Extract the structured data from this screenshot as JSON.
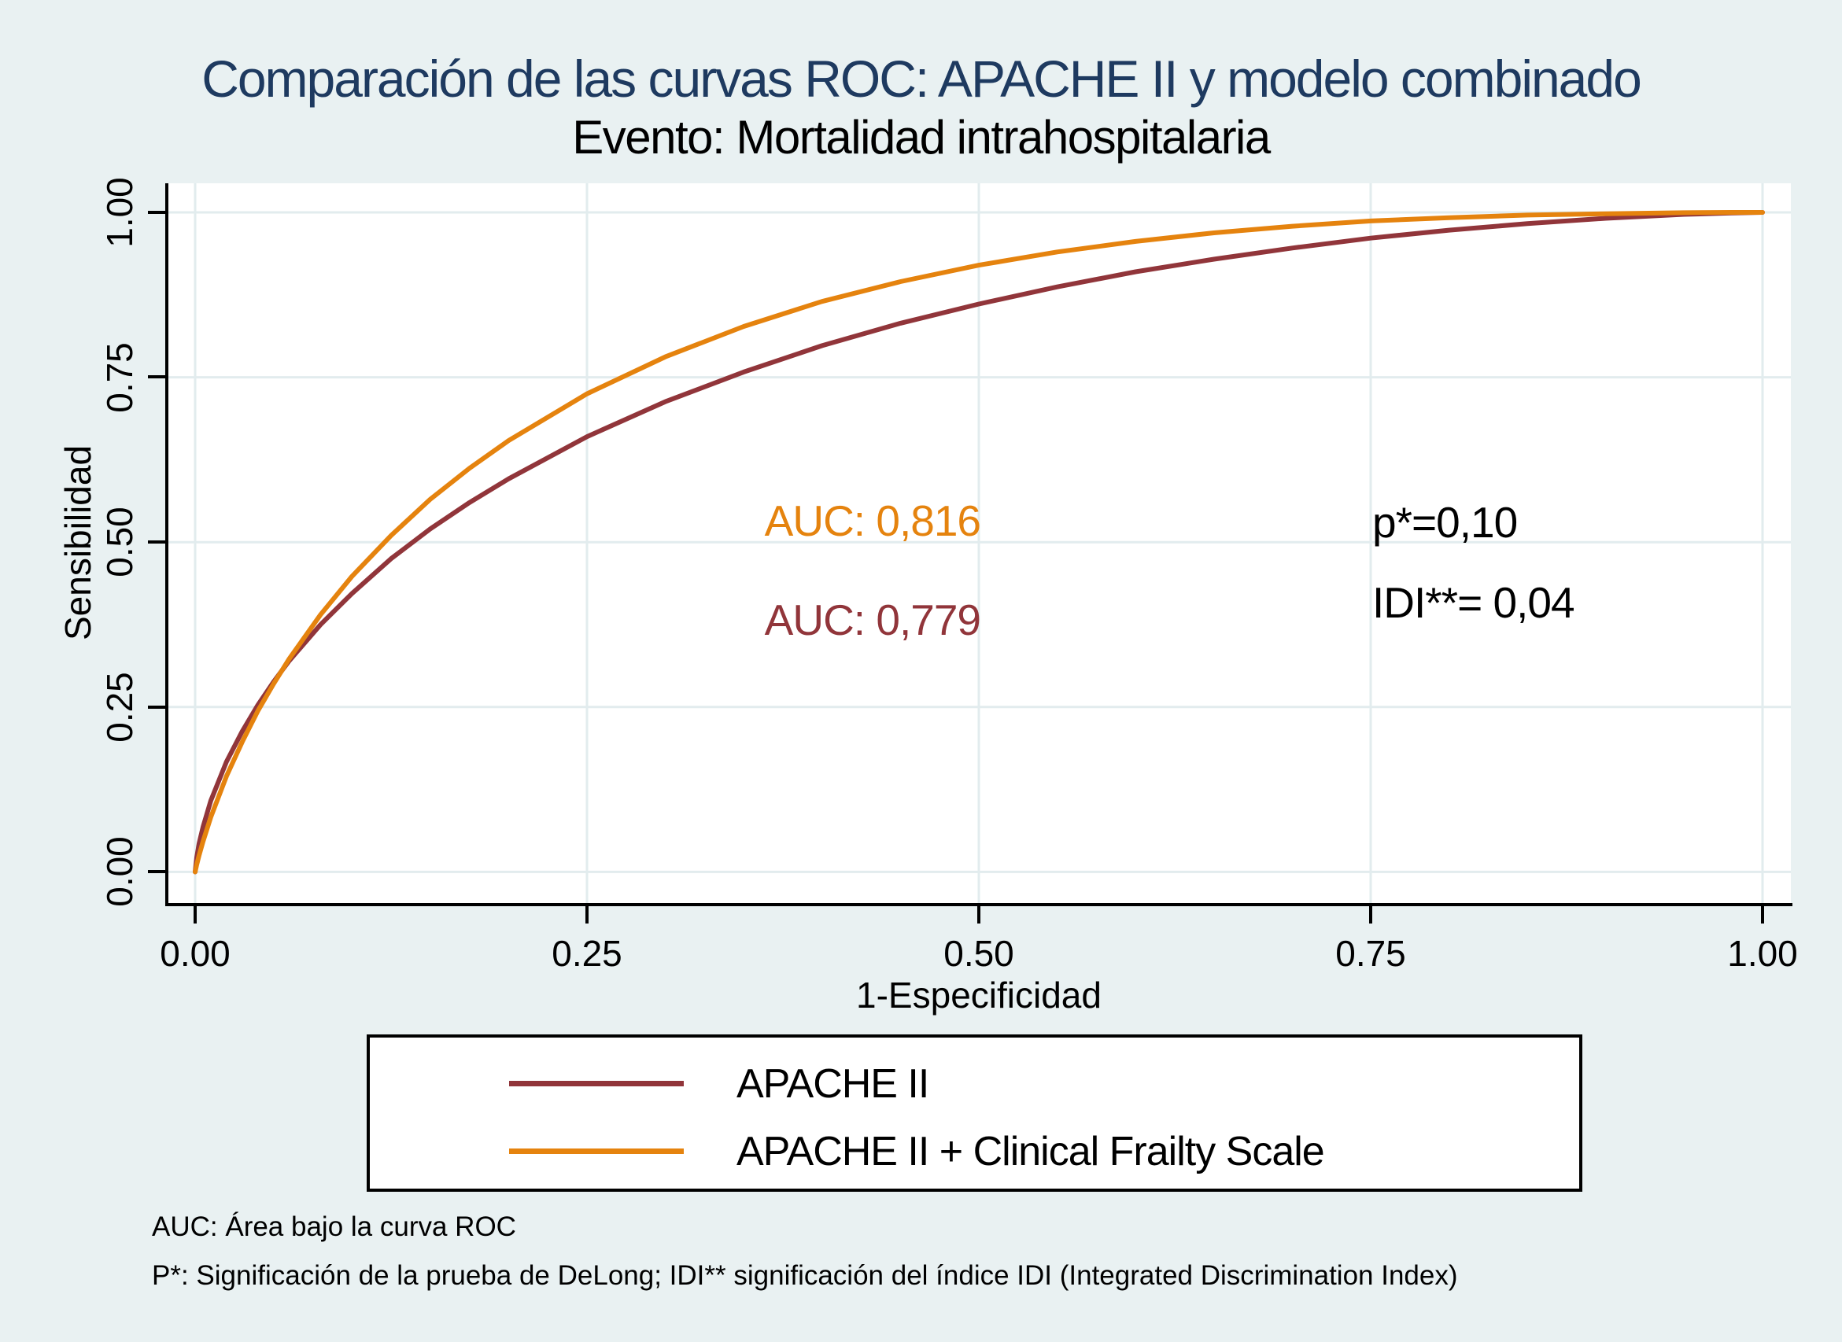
{
  "header": {
    "title": "Comparación de las curvas ROC: APACHE II y modelo combinado",
    "subtitle": "Evento: Mortalidad intrahospitalaria"
  },
  "annotations": {
    "auc_combined": "AUC: 0,816",
    "auc_apache": "AUC: 0,779",
    "p_value": "p*=0,10",
    "idi": "IDI**= 0,04"
  },
  "legend": {
    "items": [
      {
        "label": "APACHE II",
        "color": "#91353A"
      },
      {
        "label": "APACHE II + Clinical Frailty Scale",
        "color": "#E5830E"
      }
    ]
  },
  "footnotes": [
    "AUC: Área bajo la curva ROC",
    "P*: Significación de la prueba de DeLong; IDI** significación del índice IDI (Integrated Discrimination Index)"
  ],
  "colors": {
    "background": "#E9F1F2",
    "plot_background": "#FFFFFF",
    "gridline": "#E2ECEE",
    "title": "#1E3A60",
    "text": "#000000",
    "apache_red": "#91353A",
    "combined_orange": "#E5830E"
  },
  "chart_data": {
    "type": "line",
    "title": "Comparación de las curvas ROC: APACHE II y modelo combinado",
    "subtitle": "Evento: Mortalidad intrahospitalaria",
    "xlabel": "1-Especificidad",
    "ylabel": "Sensibilidad",
    "xlim": [
      0,
      1
    ],
    "ylim": [
      0,
      1
    ],
    "grid": true,
    "legend_position": "bottom",
    "x_ticks": [
      0,
      0.25,
      0.5,
      0.75,
      1
    ],
    "y_ticks": [
      0,
      0.25,
      0.5,
      0.75,
      1
    ],
    "x_tick_labels": [
      "0.00",
      "0.25",
      "0.50",
      "0.75",
      "1.00"
    ],
    "y_tick_labels": [
      "0.00",
      "0.25",
      "0.50",
      "0.75",
      "1.00"
    ],
    "series": [
      {
        "name": "APACHE II",
        "auc": 0.779,
        "color": "#91353A",
        "x": [
          0,
          0.001,
          0.0025,
          0.005,
          0.01,
          0.02,
          0.03,
          0.04,
          0.05,
          0.06,
          0.08,
          0.1,
          0.125,
          0.15,
          0.175,
          0.2,
          0.25,
          0.3,
          0.35,
          0.4,
          0.45,
          0.5,
          0.55,
          0.6,
          0.65,
          0.7,
          0.75,
          0.8,
          0.85,
          0.9,
          0.95,
          0.98,
          1
        ],
        "y": [
          0,
          0.022,
          0.043,
          0.068,
          0.108,
          0.167,
          0.213,
          0.253,
          0.288,
          0.32,
          0.375,
          0.422,
          0.475,
          0.52,
          0.56,
          0.596,
          0.66,
          0.713,
          0.758,
          0.798,
          0.832,
          0.861,
          0.887,
          0.91,
          0.929,
          0.946,
          0.961,
          0.973,
          0.983,
          0.991,
          0.997,
          0.999,
          1
        ]
      },
      {
        "name": "APACHE II + Clinical Frailty Scale",
        "auc": 0.816,
        "color": "#E5830E",
        "x": [
          0,
          0.001,
          0.0025,
          0.005,
          0.01,
          0.02,
          0.03,
          0.04,
          0.05,
          0.06,
          0.08,
          0.1,
          0.125,
          0.15,
          0.175,
          0.2,
          0.25,
          0.3,
          0.35,
          0.4,
          0.45,
          0.5,
          0.55,
          0.6,
          0.65,
          0.7,
          0.75,
          0.8,
          0.85,
          0.9,
          0.95,
          0.98,
          1
        ],
        "y": [
          0,
          0.011,
          0.025,
          0.046,
          0.083,
          0.145,
          0.197,
          0.244,
          0.285,
          0.323,
          0.39,
          0.448,
          0.51,
          0.565,
          0.612,
          0.654,
          0.725,
          0.781,
          0.827,
          0.865,
          0.895,
          0.92,
          0.94,
          0.956,
          0.969,
          0.979,
          0.987,
          0.992,
          0.996,
          0.998,
          0.9995,
          1,
          1
        ]
      }
    ],
    "comparison_stats": {
      "delong_p": "0,10",
      "idi": "0,04"
    }
  }
}
